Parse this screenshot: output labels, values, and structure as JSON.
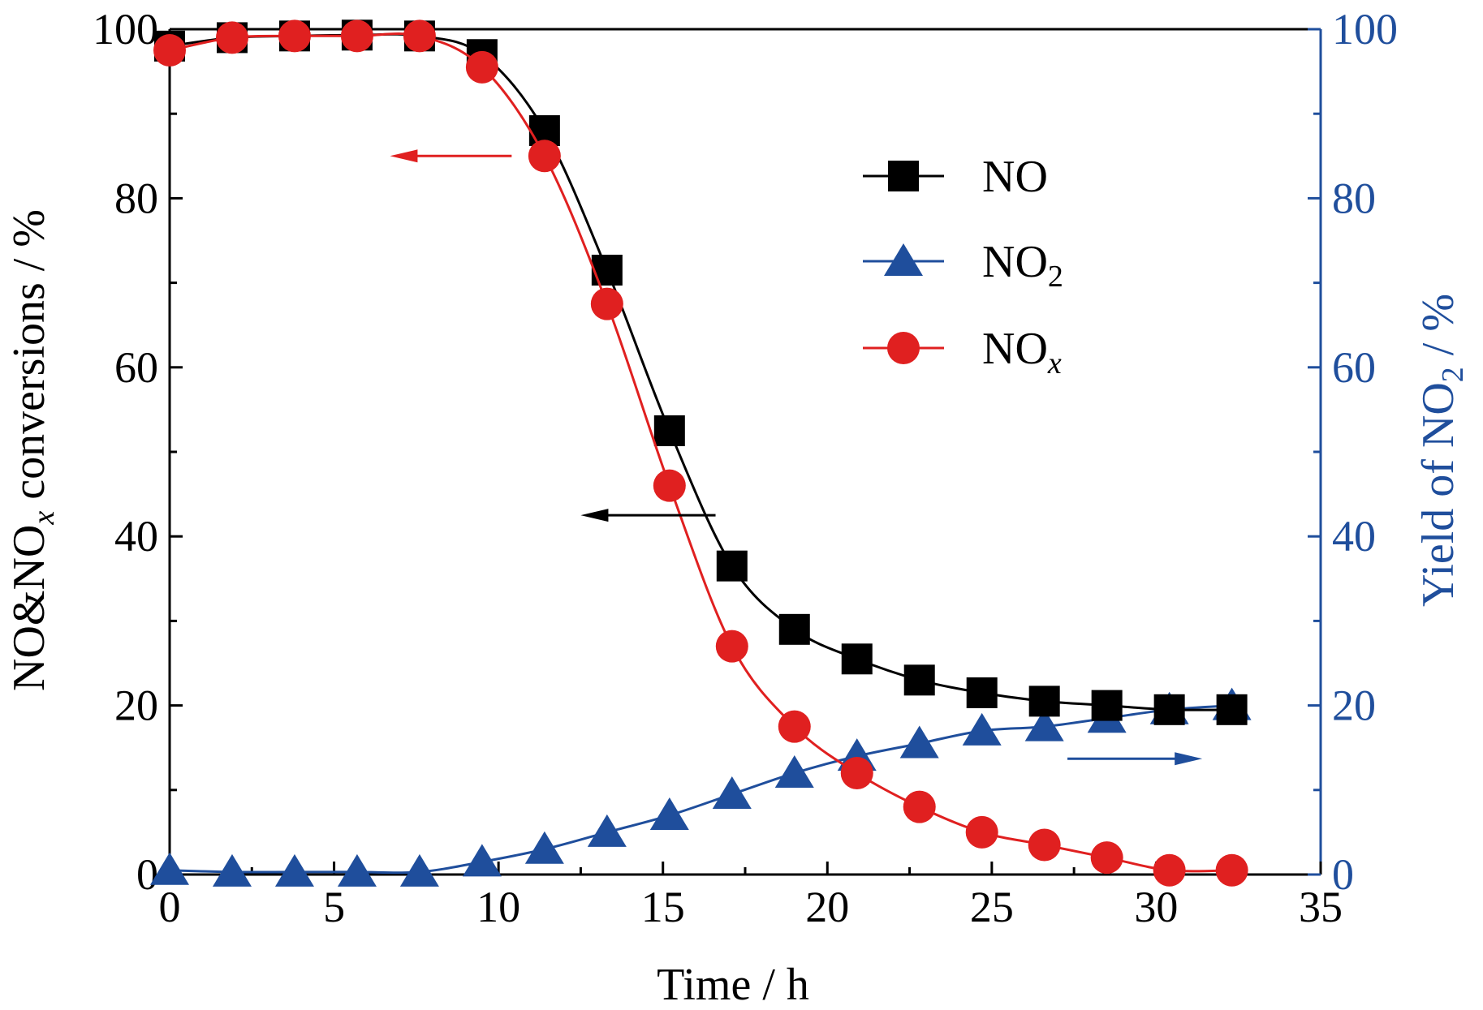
{
  "chart_data": {
    "type": "line",
    "xlabel": "Time / h",
    "ylabel_left": {
      "main": "NO&NO",
      "sub": "x",
      "tail": " conversions / %"
    },
    "ylabel_right": {
      "main": "Yield of NO",
      "sub": "2",
      "tail": " / %"
    },
    "xlim": [
      0,
      35
    ],
    "ylim_left": [
      0,
      100
    ],
    "ylim_right": [
      0,
      100
    ],
    "x_ticks": [
      0,
      5,
      10,
      15,
      20,
      25,
      30,
      35
    ],
    "y_ticks": [
      0,
      20,
      40,
      60,
      80,
      100
    ],
    "x": [
      0,
      1.9,
      3.8,
      5.7,
      7.6,
      9.5,
      11.4,
      13.3,
      15.2,
      17.1,
      19.0,
      20.9,
      22.8,
      24.7,
      26.6,
      28.5,
      30.4,
      32.3
    ],
    "series": [
      {
        "key": "NO",
        "axis": "left",
        "marker": "square",
        "color": "#000000",
        "values": [
          98,
          99,
          99.2,
          99.3,
          99.2,
          97,
          88,
          71.5,
          52.5,
          36.5,
          29,
          25.5,
          23,
          21.5,
          20.5,
          20,
          19.5,
          19.5
        ]
      },
      {
        "key": "NO2",
        "axis": "right",
        "marker": "triangle",
        "color": "#1f4e9c",
        "values": [
          0.5,
          0.3,
          0.3,
          0.3,
          0.3,
          1.5,
          3,
          5,
          7,
          9.5,
          12,
          14,
          15.5,
          17,
          17.5,
          18.5,
          19.5,
          20
        ]
      },
      {
        "key": "NOx",
        "axis": "left",
        "marker": "circle",
        "color": "#e02020",
        "values": [
          97.5,
          99,
          99.2,
          99.2,
          99.2,
          95.5,
          85,
          67.5,
          46,
          27,
          17.5,
          12,
          8,
          5,
          3.5,
          2,
          0.5,
          0.5
        ]
      }
    ],
    "legend": {
      "position": "upper-right",
      "items": [
        {
          "main": "NO",
          "sub": "",
          "sub_style": "none",
          "marker": "square",
          "color": "#000000"
        },
        {
          "main": "NO",
          "sub": "2",
          "sub_style": "normal",
          "marker": "triangle",
          "color": "#1f4e9c"
        },
        {
          "main": "NO",
          "sub": "x",
          "sub_style": "italic",
          "marker": "circle",
          "color": "#e02020"
        }
      ]
    },
    "annotations": [
      {
        "type": "arrow",
        "direction": "left",
        "color": "#e02020",
        "points_to": "left-axis",
        "series": "NOx"
      },
      {
        "type": "arrow",
        "direction": "left",
        "color": "#000000",
        "points_to": "left-axis",
        "series": "NO"
      },
      {
        "type": "arrow",
        "direction": "right",
        "color": "#1f4e9c",
        "points_to": "right-axis",
        "series": "NO2"
      }
    ],
    "colors": {
      "left_axis": "#000000",
      "right_axis": "#1f4e9c"
    },
    "grid": false
  }
}
